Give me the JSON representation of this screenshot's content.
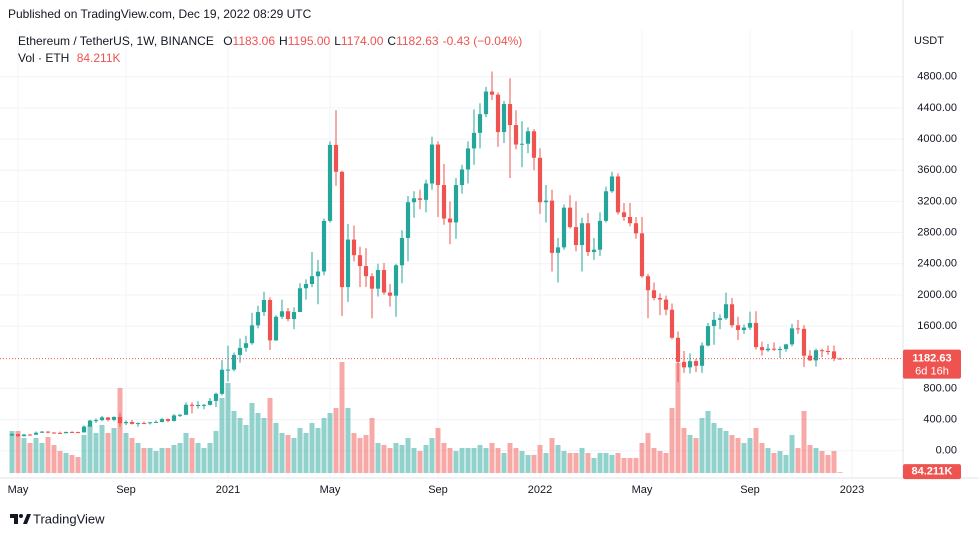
{
  "published": "Published on TradingView.com, Dec 19, 2022 08:29 UTC",
  "brand": "TradingView",
  "chart_data": {
    "type": "candlestick",
    "title": "Ethereum / TetherUS, 1W, BINANCE",
    "legend": [
      {
        "key": "O",
        "value": "1183.06"
      },
      {
        "key": "H",
        "value": "1195.00"
      },
      {
        "key": "L",
        "value": "1174.00"
      },
      {
        "key": "C",
        "value": "1182.63"
      }
    ],
    "change": "-0.43 (−0.04%)",
    "y_unit": "USDT",
    "countdown": "6d 16h",
    "up_color": "#26a69a",
    "down_color": "#ef5350",
    "grid": true,
    "xlim": [
      -2,
      148.5
    ],
    "xticks": [
      {
        "value": 1,
        "label": "May"
      },
      {
        "value": 19,
        "label": "Sep"
      },
      {
        "value": 36,
        "label": "2021"
      },
      {
        "value": 53,
        "label": "May"
      },
      {
        "value": 71,
        "label": "Sep"
      },
      {
        "value": 88,
        "label": "2022"
      },
      {
        "value": 105,
        "label": "May"
      },
      {
        "value": 123,
        "label": "Sep"
      },
      {
        "value": 140,
        "label": "2023"
      }
    ],
    "ylim": [
      -350,
      5400
    ],
    "yticks": [
      {
        "value": 0,
        "label": "0.00"
      },
      {
        "value": 400,
        "label": "400.00"
      },
      {
        "value": 800,
        "label": "800.00"
      },
      {
        "value": 1600,
        "label": "1600.00"
      },
      {
        "value": 2000,
        "label": "2000.00"
      },
      {
        "value": 2400,
        "label": "2400.00"
      },
      {
        "value": 2800,
        "label": "2800.00"
      },
      {
        "value": 3200,
        "label": "3200.00"
      },
      {
        "value": 3600,
        "label": "3600.00"
      },
      {
        "value": 4000,
        "label": "4000.00"
      },
      {
        "value": 4400,
        "label": "4400.00"
      },
      {
        "value": 4800,
        "label": "4800.00"
      }
    ],
    "open": [
      195,
      214,
      187,
      207,
      206,
      231,
      245,
      233,
      229,
      225,
      241,
      239,
      235,
      310,
      387,
      393,
      428,
      396,
      434,
      353,
      368,
      344,
      355,
      353,
      365,
      369,
      406,
      383,
      453,
      461,
      590,
      576,
      587,
      589,
      639,
      730,
      1040,
      1041,
      1230,
      1320,
      1380,
      1610,
      1780,
      1935,
      1416,
      1720,
      1790,
      1690,
      1780,
      2085,
      2140,
      2240,
      2300,
      2950,
      3925,
      3580,
      2100,
      2710,
      2510,
      2370,
      2240,
      2080,
      2320,
      2030,
      1990,
      2380,
      2730,
      3190,
      3240,
      3220,
      3430,
      3930,
      3410,
      2980,
      2930,
      3410,
      3610,
      3880,
      4080,
      4320,
      4610,
      4570,
      4090,
      4450,
      4180,
      3930,
      3940,
      4100,
      3760,
      3190,
      3210,
      2540,
      2610,
      3120,
      2870,
      2640,
      2920,
      2550,
      2580,
      2950,
      3330,
      3520,
      3060,
      3000,
      2920,
      2790,
      2240,
      2060,
      1960,
      1940,
      1810,
      1450,
      1140,
      1070,
      1150,
      1090,
      1350,
      1600,
      1680,
      1700,
      1880,
      1610,
      1550,
      1580,
      1640,
      1330,
      1290,
      1310,
      1300,
      1305,
      1365,
      1570,
      1565,
      1220,
      1160,
      1290,
      1280,
      1275,
      1183.06
    ],
    "high": [
      227,
      218,
      216,
      214,
      247,
      253,
      251,
      239,
      246,
      246,
      250,
      245,
      325,
      397,
      413,
      445,
      430,
      440,
      488,
      390,
      395,
      361,
      375,
      367,
      390,
      421,
      413,
      470,
      473,
      620,
      622,
      635,
      600,
      676,
      746,
      1163,
      1349,
      1260,
      1440,
      1475,
      1770,
      1860,
      2040,
      1970,
      1740,
      1940,
      1832,
      1840,
      2150,
      2200,
      2550,
      2450,
      2980,
      3970,
      4372,
      3590,
      2910,
      2890,
      2620,
      2600,
      2280,
      2400,
      2410,
      2140,
      2400,
      2830,
      3270,
      3330,
      3350,
      3480,
      4030,
      3970,
      3680,
      3200,
      3500,
      3670,
      3970,
      4380,
      4460,
      4670,
      4868,
      4600,
      4490,
      4780,
      4370,
      4230,
      4150,
      4130,
      3880,
      3410,
      3350,
      2730,
      3160,
      3280,
      3200,
      2990,
      3050,
      2730,
      3060,
      3390,
      3580,
      3560,
      3180,
      3180,
      3000,
      3000,
      2270,
      2160,
      2020,
      1990,
      1890,
      1530,
      1280,
      1250,
      1180,
      1390,
      1640,
      1780,
      1750,
      2030,
      1960,
      1720,
      1620,
      1785,
      1790,
      1400,
      1370,
      1390,
      1340,
      1370,
      1630,
      1680,
      1610,
      1290,
      1310,
      1310,
      1350,
      1350,
      1195
    ],
    "low": [
      190,
      176,
      182,
      195,
      200,
      227,
      222,
      223,
      220,
      222,
      234,
      230,
      234,
      305,
      356,
      380,
      376,
      378,
      310,
      330,
      336,
      308,
      342,
      336,
      364,
      366,
      365,
      373,
      433,
      460,
      480,
      541,
      533,
      580,
      560,
      709,
      889,
      1020,
      1130,
      1270,
      1360,
      1570,
      1730,
      1293,
      1410,
      1690,
      1660,
      1560,
      1780,
      1940,
      2100,
      1880,
      2250,
      2930,
      3400,
      1730,
      1910,
      2430,
      2100,
      2100,
      1700,
      1980,
      2000,
      1850,
      1720,
      2150,
      2430,
      2990,
      3100,
      3060,
      3350,
      3000,
      2900,
      2650,
      2720,
      3300,
      3430,
      3670,
      3880,
      4280,
      4500,
      3900,
      3950,
      3500,
      3870,
      3640,
      3820,
      3600,
      3040,
      2930,
      2300,
      2160,
      2580,
      2850,
      2560,
      2300,
      2500,
      2450,
      2500,
      2930,
      3310,
      3030,
      2950,
      2880,
      2720,
      2220,
      1700,
      1930,
      1740,
      1740,
      1430,
      880,
      1000,
      990,
      1010,
      1000,
      1340,
      1360,
      1560,
      1680,
      1580,
      1420,
      1500,
      1550,
      1300,
      1220,
      1270,
      1280,
      1190,
      1270,
      1340,
      1500,
      1075,
      1150,
      1080,
      1200,
      1230,
      1150,
      1174
    ],
    "close": [
      214,
      187,
      207,
      206,
      231,
      245,
      233,
      229,
      225,
      241,
      239,
      235,
      310,
      387,
      393,
      428,
      396,
      434,
      353,
      368,
      344,
      355,
      353,
      365,
      369,
      406,
      383,
      453,
      461,
      590,
      576,
      587,
      589,
      639,
      730,
      1040,
      1041,
      1230,
      1320,
      1380,
      1610,
      1780,
      1935,
      1416,
      1720,
      1790,
      1690,
      1780,
      2085,
      2140,
      2240,
      2300,
      2950,
      3925,
      3580,
      2100,
      2710,
      2510,
      2370,
      2240,
      2080,
      2320,
      2030,
      1990,
      2380,
      2730,
      3190,
      3240,
      3220,
      3430,
      3930,
      3410,
      2980,
      2930,
      3410,
      3610,
      3880,
      4080,
      4320,
      4610,
      4570,
      4090,
      4450,
      4180,
      3930,
      3940,
      4100,
      3760,
      3190,
      3210,
      2540,
      2610,
      3120,
      2870,
      2640,
      2920,
      2550,
      2580,
      2950,
      3330,
      3520,
      3060,
      3000,
      2920,
      2790,
      2240,
      2060,
      1960,
      1940,
      1810,
      1450,
      1140,
      1070,
      1150,
      1090,
      1350,
      1600,
      1680,
      1700,
      1880,
      1610,
      1550,
      1580,
      1640,
      1330,
      1290,
      1310,
      1300,
      1305,
      1365,
      1570,
      1565,
      1220,
      1160,
      1290,
      1280,
      1275,
      1183.06,
      1182.63
    ],
    "volume": {
      "name": "Vol · ETH",
      "values": [
        4200000,
        4200000,
        3500000,
        3000000,
        3500000,
        3000000,
        3600000,
        2800000,
        2200000,
        2000000,
        1800000,
        1600000,
        3800000,
        4800000,
        4000000,
        4800000,
        4000000,
        4500000,
        8500000,
        4000000,
        3500000,
        3000000,
        2500000,
        2500000,
        2200000,
        2500000,
        2500000,
        2800000,
        3000000,
        4000000,
        3500000,
        3000000,
        2500000,
        3000000,
        4200000,
        7500000,
        9000000,
        6200000,
        5500000,
        4800000,
        7000000,
        6000000,
        5500000,
        7500000,
        5000000,
        4000000,
        3800000,
        3500000,
        4500000,
        4000000,
        5000000,
        4500000,
        5500000,
        6000000,
        6500000,
        11100000,
        6500000,
        4000000,
        3500000,
        3800000,
        5500000,
        3000000,
        2800000,
        2500000,
        3000000,
        2800000,
        3500000,
        2500000,
        2200000,
        2800000,
        3500000,
        4500000,
        3000000,
        2500000,
        2200000,
        2500000,
        2500000,
        2500000,
        2800000,
        2500000,
        3000000,
        2500000,
        2000000,
        3000000,
        2500000,
        2200000,
        1800000,
        1800000,
        2800000,
        2000000,
        3500000,
        2800000,
        2200000,
        2000000,
        2000000,
        2500000,
        2000000,
        1500000,
        2000000,
        2000000,
        1800000,
        2000000,
        1500000,
        1500000,
        1500000,
        3000000,
        4000000,
        2500000,
        2200000,
        2000000,
        6500000,
        11000000,
        4500000,
        3800000,
        3500000,
        5500000,
        6200000,
        5000000,
        4500000,
        4200000,
        3800000,
        3500000,
        3000000,
        3500000,
        4500000,
        3000000,
        2500000,
        2000000,
        2200000,
        1800000,
        3800000,
        2500000,
        6200000,
        2800000,
        2500000,
        2200000,
        1800000,
        2200000,
        84211
      ],
      "value_labels": [
        null,
        null,
        null,
        null,
        null,
        null,
        null,
        null,
        null,
        null,
        null,
        null,
        null,
        null,
        null,
        null,
        null,
        null,
        null,
        null,
        null,
        null,
        null,
        null,
        null,
        null,
        null,
        null,
        null,
        null,
        null,
        null,
        null,
        null,
        null,
        null,
        null,
        null,
        null,
        null,
        null,
        null,
        null,
        null,
        null,
        null,
        null,
        null,
        null,
        null,
        null,
        null,
        null,
        null,
        null,
        null,
        null,
        null,
        null,
        null,
        null,
        null,
        null,
        null,
        null,
        null,
        null,
        null,
        null,
        null,
        null,
        null,
        null,
        null,
        null,
        null,
        null,
        null,
        null,
        null,
        null,
        null,
        null,
        null,
        null,
        null,
        null,
        null,
        null,
        null,
        null,
        null,
        null,
        null,
        null,
        null,
        null,
        null,
        null,
        null,
        null,
        null,
        null,
        null,
        null,
        null,
        null,
        null,
        null,
        null,
        null,
        null,
        null,
        null,
        null,
        null,
        null,
        null,
        null,
        null,
        null,
        null,
        null,
        null,
        null,
        null,
        null,
        null,
        null,
        null,
        null,
        null,
        null,
        null,
        null,
        null,
        null,
        null,
        "84.211K"
      ]
    }
  }
}
